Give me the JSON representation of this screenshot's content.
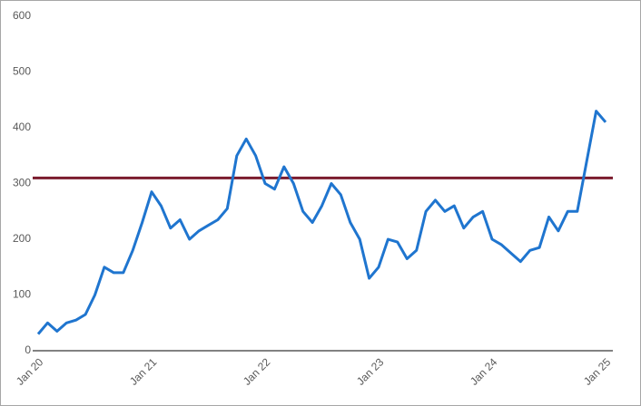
{
  "chart_data": {
    "type": "line",
    "categories": [
      "Jan 20",
      null,
      null,
      null,
      null,
      null,
      null,
      null,
      null,
      null,
      null,
      null,
      "Jan 21",
      null,
      null,
      null,
      null,
      null,
      null,
      null,
      null,
      null,
      null,
      null,
      "Jan 22",
      null,
      null,
      null,
      null,
      null,
      null,
      null,
      null,
      null,
      null,
      null,
      "Jan 23",
      null,
      null,
      null,
      null,
      null,
      null,
      null,
      null,
      null,
      null,
      null,
      "Jan 24",
      null,
      null,
      null,
      null,
      null,
      null,
      null,
      null,
      null,
      null,
      null,
      "Jan 25"
    ],
    "series": [
      {
        "color": "#1f75cf",
        "values": [
          30,
          50,
          35,
          50,
          55,
          65,
          100,
          150,
          140,
          140,
          180,
          230,
          285,
          260,
          220,
          235,
          200,
          215,
          225,
          235,
          255,
          350,
          380,
          350,
          300,
          290,
          330,
          300,
          250,
          230,
          260,
          300,
          280,
          230,
          200,
          130,
          150,
          200,
          195,
          165,
          180,
          250,
          270,
          250,
          260,
          220,
          240,
          250,
          200,
          190,
          175,
          160,
          180,
          185,
          240,
          215,
          250,
          250,
          340,
          430,
          410
        ]
      }
    ],
    "hline": {
      "value": 310,
      "color": "#7b1c2e"
    },
    "ylim": [
      0,
      600
    ],
    "yticks": [
      0,
      100,
      200,
      300,
      400,
      500,
      600
    ],
    "grid": false
  }
}
